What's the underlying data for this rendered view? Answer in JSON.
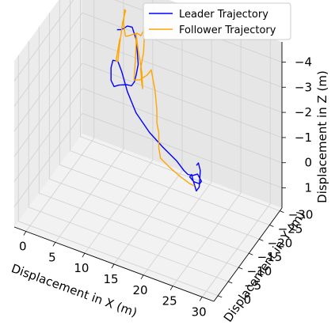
{
  "chart_data": {
    "type": "line3d",
    "title": "",
    "axes": {
      "x": {
        "label": "Displacement in X (m)",
        "ticks": [
          0,
          5,
          10,
          15,
          20,
          25,
          30
        ],
        "range": [
          -2,
          32
        ]
      },
      "y": {
        "label": "Displacement in Y (m)",
        "ticks": [
          0,
          -5,
          -10,
          -15,
          -20,
          -25,
          -30
        ],
        "range": [
          2,
          -31
        ]
      },
      "z": {
        "label": "Displacement in Z (m)",
        "ticks": [
          1,
          0,
          -1,
          -2,
          -3,
          -4
        ],
        "range": [
          1.8,
          -4.8
        ]
      }
    },
    "legend": {
      "position": "top-right"
    },
    "series": [
      {
        "name": "Leader Trajectory",
        "color": "#0000ff",
        "points": [
          [
            6,
            -25,
            -3.7
          ],
          [
            7,
            -24,
            -3.9
          ],
          [
            8,
            -22.5,
            -4.2
          ],
          [
            9,
            -21.5,
            -4.5
          ],
          [
            10,
            -21,
            -4.6
          ],
          [
            10.5,
            -21.5,
            -4.1
          ],
          [
            10.5,
            -22,
            -3.6
          ],
          [
            10.5,
            -22.5,
            -3.0
          ],
          [
            10,
            -23,
            -2.5
          ],
          [
            9.5,
            -23.5,
            -2.1
          ],
          [
            9,
            -23.5,
            -1.9
          ],
          [
            8,
            -24,
            -1.8
          ],
          [
            6.5,
            -24.5,
            -1.6
          ],
          [
            5.5,
            -25,
            -1.4
          ],
          [
            5,
            -25,
            -1.6
          ],
          [
            5,
            -25,
            -2.1
          ],
          [
            5.5,
            -24.5,
            -2.5
          ],
          [
            6.5,
            -24,
            -2.6
          ],
          [
            7.5,
            -23,
            -2.4
          ],
          [
            9,
            -21.5,
            -1.9
          ],
          [
            11,
            -20,
            -1.4
          ],
          [
            14,
            -18,
            -1.1
          ],
          [
            17,
            -16,
            -1.0
          ],
          [
            20,
            -14,
            -0.95
          ],
          [
            22,
            -12,
            -0.95
          ],
          [
            23,
            -11,
            -1.0
          ],
          [
            24,
            -10.5,
            -1.1
          ],
          [
            25,
            -10,
            -1.3
          ],
          [
            25.5,
            -10.5,
            -1.0
          ],
          [
            25,
            -11,
            -0.8
          ],
          [
            24,
            -11,
            -0.8
          ],
          [
            23.5,
            -10.5,
            -1.0
          ],
          [
            24,
            -10,
            -1.2
          ],
          [
            24.5,
            -9,
            -1.2
          ],
          [
            25.5,
            -8,
            -0.9
          ],
          [
            26,
            -8,
            -1.1
          ],
          [
            26,
            -8.5,
            -1.7
          ],
          [
            25.5,
            -9,
            -1.9
          ],
          [
            25,
            -9.5,
            -1.7
          ]
        ]
      },
      {
        "name": "Follower Trajectory",
        "color": "#ffa500",
        "points": [
          [
            6.5,
            -25,
            -3.4
          ],
          [
            6,
            -24.5,
            -2.5
          ],
          [
            6.5,
            -24,
            -2.6
          ],
          [
            7,
            -23.5,
            -3.4
          ],
          [
            7.5,
            -23.5,
            -4.3
          ],
          [
            8,
            -23.5,
            -4.8
          ],
          [
            8,
            -23,
            -4.9
          ],
          [
            8,
            -22.5,
            -4.4
          ],
          [
            8.5,
            -22,
            -4.0
          ],
          [
            9,
            -21.5,
            -4.1
          ],
          [
            10,
            -21,
            -4.3
          ],
          [
            11,
            -20.5,
            -4.5
          ],
          [
            12,
            -19.5,
            -4.6
          ],
          [
            13,
            -19,
            -5.1
          ],
          [
            13,
            -18.5,
            -5.0
          ],
          [
            13,
            -18,
            -4.2
          ],
          [
            12.5,
            -18,
            -3.5
          ],
          [
            12.5,
            -18.5,
            -2.9
          ],
          [
            12.5,
            -19,
            -2.6
          ],
          [
            12,
            -20,
            -3.1
          ],
          [
            11,
            -21,
            -3.8
          ],
          [
            10.5,
            -21.5,
            -4.3
          ],
          [
            10.5,
            -21.5,
            -3.9
          ],
          [
            10.5,
            -21,
            -3.2
          ],
          [
            10.5,
            -20.5,
            -2.6
          ],
          [
            12,
            -19,
            -2.9
          ],
          [
            14,
            -17,
            -3.5
          ],
          [
            15,
            -16,
            -3.9
          ],
          [
            16,
            -15,
            -3.3
          ],
          [
            16.5,
            -14.5,
            -2.6
          ],
          [
            16.5,
            -14.5,
            -2.1
          ],
          [
            17,
            -14,
            -1.8
          ],
          [
            17,
            -14,
            -1.2
          ],
          [
            18,
            -12,
            -1.1
          ],
          [
            20,
            -11,
            -1.0
          ],
          [
            22,
            -10,
            -0.95
          ],
          [
            24,
            -9,
            -0.95
          ],
          [
            25,
            -8.5,
            -1.0
          ]
        ]
      }
    ]
  }
}
